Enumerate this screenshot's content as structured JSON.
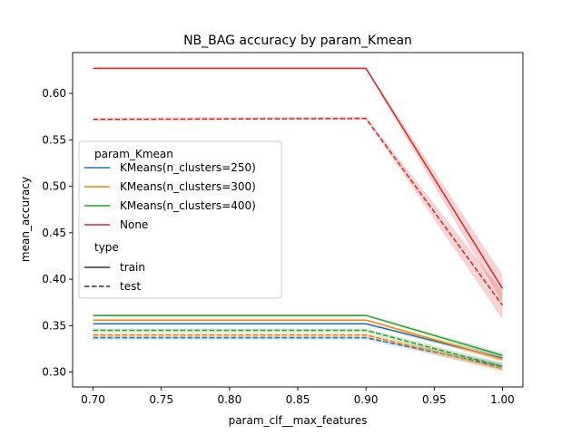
{
  "chart_data": {
    "type": "line",
    "title": "NB_BAG accuracy by param_Kmean",
    "xlabel": "param_clf__max_features",
    "ylabel": "mean_accuracy",
    "x": [
      0.7,
      0.9,
      1.0
    ],
    "xlim": [
      0.685,
      1.015
    ],
    "ylim": [
      0.284,
      0.644
    ],
    "xticks": [
      "0.70",
      "0.75",
      "0.80",
      "0.85",
      "0.90",
      "0.95",
      "1.00"
    ],
    "xtick_values": [
      0.7,
      0.75,
      0.8,
      0.85,
      0.9,
      0.95,
      1.0
    ],
    "yticks": [
      "0.30",
      "0.35",
      "0.40",
      "0.45",
      "0.50",
      "0.55",
      "0.60"
    ],
    "ytick_values": [
      0.3,
      0.35,
      0.4,
      0.45,
      0.5,
      0.55,
      0.6
    ],
    "grid": false,
    "legend": {
      "placement": "center-left",
      "hue_title": "param_Kmean",
      "style_title": "type",
      "hue_entries": [
        {
          "label": "KMeans(n_clusters=250)",
          "color": "#1f77b4"
        },
        {
          "label": "KMeans(n_clusters=300)",
          "color": "#ff7f0e"
        },
        {
          "label": "KMeans(n_clusters=400)",
          "color": "#2ca02c"
        },
        {
          "label": "None",
          "color": "#d62728"
        }
      ],
      "style_entries": [
        {
          "label": "train",
          "dash": "solid"
        },
        {
          "label": "test",
          "dash": "dashed"
        }
      ]
    },
    "series": [
      {
        "param_Kmean": "KMeans(n_clusters=250)",
        "type": "train",
        "color": "#1f77b4",
        "dash": "solid",
        "values": [
          0.352,
          0.352,
          0.315
        ],
        "ci": [
          [
            0.351,
            0.353
          ],
          [
            0.351,
            0.353
          ],
          [
            0.312,
            0.318
          ]
        ]
      },
      {
        "param_Kmean": "KMeans(n_clusters=300)",
        "type": "train",
        "color": "#ff7f0e",
        "dash": "solid",
        "values": [
          0.356,
          0.356,
          0.314
        ],
        "ci": [
          [
            0.355,
            0.357
          ],
          [
            0.355,
            0.357
          ],
          [
            0.311,
            0.317
          ]
        ]
      },
      {
        "param_Kmean": "KMeans(n_clusters=400)",
        "type": "train",
        "color": "#2ca02c",
        "dash": "solid",
        "values": [
          0.361,
          0.361,
          0.318
        ],
        "ci": [
          [
            0.36,
            0.362
          ],
          [
            0.36,
            0.362
          ],
          [
            0.315,
            0.321
          ]
        ]
      },
      {
        "param_Kmean": "None",
        "type": "train",
        "color": "#d62728",
        "dash": "solid",
        "values": [
          0.627,
          0.627,
          0.39
        ],
        "ci": [
          [
            0.626,
            0.628
          ],
          [
            0.626,
            0.628
          ],
          [
            0.375,
            0.405
          ]
        ]
      },
      {
        "param_Kmean": "KMeans(n_clusters=250)",
        "type": "test",
        "color": "#1f77b4",
        "dash": "dashed",
        "values": [
          0.337,
          0.337,
          0.306
        ],
        "ci": [
          [
            0.335,
            0.339
          ],
          [
            0.335,
            0.339
          ],
          [
            0.302,
            0.31
          ]
        ]
      },
      {
        "param_Kmean": "KMeans(n_clusters=300)",
        "type": "test",
        "color": "#ff7f0e",
        "dash": "dashed",
        "values": [
          0.34,
          0.34,
          0.304
        ],
        "ci": [
          [
            0.338,
            0.342
          ],
          [
            0.338,
            0.342
          ],
          [
            0.3,
            0.308
          ]
        ]
      },
      {
        "param_Kmean": "KMeans(n_clusters=400)",
        "type": "test",
        "color": "#2ca02c",
        "dash": "dashed",
        "values": [
          0.345,
          0.345,
          0.306
        ],
        "ci": [
          [
            0.343,
            0.347
          ],
          [
            0.343,
            0.347
          ],
          [
            0.302,
            0.31
          ]
        ]
      },
      {
        "param_Kmean": "None",
        "type": "test",
        "color": "#d62728",
        "dash": "dashed",
        "values": [
          0.572,
          0.573,
          0.372
        ],
        "ci": [
          [
            0.571,
            0.574
          ],
          [
            0.572,
            0.575
          ],
          [
            0.357,
            0.387
          ]
        ]
      }
    ]
  }
}
